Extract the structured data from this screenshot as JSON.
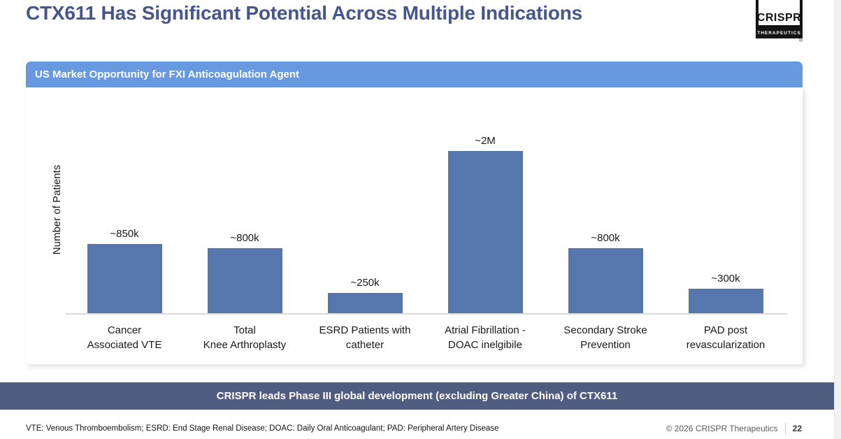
{
  "title": "CTX611 Has Significant Potential Across Multiple Indications",
  "logo": {
    "brand": "CRISPR",
    "sub_brand": "THERAPEUTICS",
    "registered_mark": "®"
  },
  "panel_header": "US Market Opportunity for FXI Anticoagulation Agent",
  "chart_data": {
    "type": "bar",
    "title": "US Market Opportunity for FXI Anticoagulation Agent",
    "ylabel": "Number of Patients",
    "categories": [
      "Cancer\nAssociated VTE",
      "Total\nKnee Arthroplasty",
      "ESRD Patients with\ncatheter",
      "Atrial Fibrillation -\nDOAC inelgibile",
      "Secondary Stroke\nPrevention",
      "PAD post\nrevascularization"
    ],
    "values": [
      850000,
      800000,
      250000,
      2000000,
      800000,
      300000
    ],
    "value_labels": [
      "~850k",
      "~800k",
      "~250k",
      "~2M",
      "~800k",
      "~300k"
    ],
    "ylim": [
      0,
      2000000
    ],
    "grid": false,
    "legend": false,
    "bar_color": "#5577AD"
  },
  "banner_text": "CRISPR leads Phase III global development (excluding Greater China) of CTX611",
  "footer": {
    "abbreviations": "VTE: Venous Thromboembolism; ESRD: End Stage Renal Disease; DOAC: Daily Oral Anticoagulant; PAD: Peripheral Artery Disease",
    "copyright": "© 2026 CRISPR Therapeutics",
    "page_number": "22"
  },
  "colors": {
    "title": "#44568B",
    "panel_header_bg": "#6699E0",
    "bar": "#5577AD",
    "banner_bg": "#505C80",
    "axis_line": "#D9D9D9"
  }
}
